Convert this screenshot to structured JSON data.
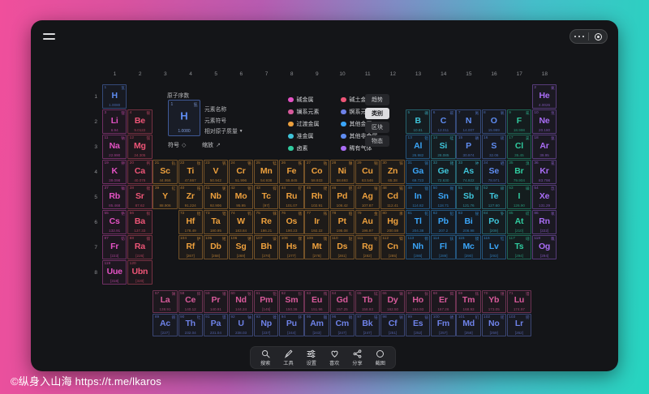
{
  "frame": {
    "copyright": "©纵身入山海 https://t.me/lkaros",
    "gradient_left": "#f04f9c",
    "gradient_right": "#26d5bf"
  },
  "window": {
    "bg": "#141518"
  },
  "capsule": {
    "more_name": "more-menu",
    "close_name": "close-target"
  },
  "table": {
    "group_labels": [
      "1",
      "2",
      "3",
      "4",
      "5",
      "6",
      "7",
      "8",
      "9",
      "10",
      "11",
      "12",
      "13",
      "14",
      "15",
      "16",
      "17",
      "18"
    ],
    "period_labels": [
      "1",
      "2",
      "3",
      "4",
      "5",
      "6",
      "7",
      "8"
    ]
  },
  "legend": {
    "sample": {
      "atomic_number_label": "原子序数",
      "name_label": "元素名称",
      "symbol_label": "元素符号",
      "mass_label": "相对原子质量",
      "mass_dropdown_icon": "▼",
      "number": "1",
      "name": "氢",
      "symbol": "H",
      "mass": "1.0080"
    },
    "toggles": [
      {
        "label": "符号",
        "icon": "◇"
      },
      {
        "label": "缩放",
        "icon": "↗"
      }
    ],
    "categories": [
      {
        "label": "碱金属",
        "cat": "alkali"
      },
      {
        "label": "碱土金属",
        "cat": "alkaline"
      },
      {
        "label": "镧系元素",
        "cat": "lanthanide"
      },
      {
        "label": "锕系元素",
        "cat": "actinide"
      },
      {
        "label": "过渡金属",
        "cat": "transition"
      },
      {
        "label": "其他金属",
        "cat": "postmetal"
      },
      {
        "label": "准金属",
        "cat": "metalloid"
      },
      {
        "label": "其他非金属",
        "cat": "nonmetal"
      },
      {
        "label": "卤素",
        "cat": "halogen"
      },
      {
        "label": "稀有气体",
        "cat": "noble"
      }
    ],
    "view_tabs": [
      {
        "label": "趋势",
        "active": false
      },
      {
        "label": "类别",
        "active": true
      },
      {
        "label": "区块",
        "active": false
      },
      {
        "label": "物态",
        "active": false
      }
    ]
  },
  "toolbar": {
    "items": [
      {
        "label": "搜索",
        "icon": "search"
      },
      {
        "label": "工具",
        "icon": "tools"
      },
      {
        "label": "设置",
        "icon": "settings"
      },
      {
        "label": "喜欢",
        "icon": "heart"
      },
      {
        "label": "分享",
        "icon": "share"
      },
      {
        "label": "截图",
        "icon": "screenshot"
      }
    ]
  },
  "category_colors": {
    "alkali": "#e452c4",
    "alkaline": "#ee5577",
    "lanthanide": "#d85a9b",
    "actinide": "#6e82e8",
    "transition": "#eda03d",
    "postmetal": "#3aa5f8",
    "metalloid": "#3fc4d9",
    "nonmetal": "#5f8df2",
    "halogen": "#30cb9f",
    "noble": "#a96df5"
  },
  "elements": [
    [
      1,
      "H",
      "氢",
      "1.0080",
      "nonmetal",
      1,
      1
    ],
    [
      2,
      "He",
      "氦",
      "4.0026",
      "noble",
      1,
      18
    ],
    [
      3,
      "Li",
      "锂",
      "6.94",
      "alkali",
      2,
      1
    ],
    [
      4,
      "Be",
      "铍",
      "9.0122",
      "alkaline",
      2,
      2
    ],
    [
      5,
      "B",
      "硼",
      "10.81",
      "metalloid",
      2,
      13
    ],
    [
      6,
      "C",
      "碳",
      "12.011",
      "nonmetal",
      2,
      14
    ],
    [
      7,
      "N",
      "氮",
      "14.007",
      "nonmetal",
      2,
      15
    ],
    [
      8,
      "O",
      "氧",
      "15.999",
      "nonmetal",
      2,
      16
    ],
    [
      9,
      "F",
      "氟",
      "18.998",
      "halogen",
      2,
      17
    ],
    [
      10,
      "Ne",
      "氖",
      "20.180",
      "noble",
      2,
      18
    ],
    [
      11,
      "Na",
      "钠",
      "22.990",
      "alkali",
      3,
      1
    ],
    [
      12,
      "Mg",
      "镁",
      "24.305",
      "alkaline",
      3,
      2
    ],
    [
      13,
      "Al",
      "铝",
      "26.982",
      "postmetal",
      3,
      13
    ],
    [
      14,
      "Si",
      "硅",
      "28.085",
      "metalloid",
      3,
      14
    ],
    [
      15,
      "P",
      "磷",
      "30.974",
      "nonmetal",
      3,
      15
    ],
    [
      16,
      "S",
      "硫",
      "32.06",
      "nonmetal",
      3,
      16
    ],
    [
      17,
      "Cl",
      "氯",
      "35.45",
      "halogen",
      3,
      17
    ],
    [
      18,
      "Ar",
      "氩",
      "39.95",
      "noble",
      3,
      18
    ],
    [
      19,
      "K",
      "钾",
      "39.098",
      "alkali",
      4,
      1
    ],
    [
      20,
      "Ca",
      "钙",
      "40.078",
      "alkaline",
      4,
      2
    ],
    [
      21,
      "Sc",
      "钪",
      "44.956",
      "transition",
      4,
      3
    ],
    [
      22,
      "Ti",
      "钛",
      "47.867",
      "transition",
      4,
      4
    ],
    [
      23,
      "V",
      "钒",
      "50.942",
      "transition",
      4,
      5
    ],
    [
      24,
      "Cr",
      "铬",
      "51.996",
      "transition",
      4,
      6
    ],
    [
      25,
      "Mn",
      "锰",
      "54.938",
      "transition",
      4,
      7
    ],
    [
      26,
      "Fe",
      "铁",
      "55.845",
      "transition",
      4,
      8
    ],
    [
      27,
      "Co",
      "钴",
      "58.933",
      "transition",
      4,
      9
    ],
    [
      28,
      "Ni",
      "镍",
      "58.693",
      "transition",
      4,
      10
    ],
    [
      29,
      "Cu",
      "铜",
      "63.546",
      "transition",
      4,
      11
    ],
    [
      30,
      "Zn",
      "锌",
      "65.38",
      "transition",
      4,
      12
    ],
    [
      31,
      "Ga",
      "镓",
      "69.723",
      "postmetal",
      4,
      13
    ],
    [
      32,
      "Ge",
      "锗",
      "72.630",
      "metalloid",
      4,
      14
    ],
    [
      33,
      "As",
      "砷",
      "74.922",
      "metalloid",
      4,
      15
    ],
    [
      34,
      "Se",
      "硒",
      "78.971",
      "nonmetal",
      4,
      16
    ],
    [
      35,
      "Br",
      "溴",
      "79.904",
      "halogen",
      4,
      17
    ],
    [
      36,
      "Kr",
      "氪",
      "83.798",
      "noble",
      4,
      18
    ],
    [
      37,
      "Rb",
      "铷",
      "85.468",
      "alkali",
      5,
      1
    ],
    [
      38,
      "Sr",
      "锶",
      "87.62",
      "alkaline",
      5,
      2
    ],
    [
      39,
      "Y",
      "钇",
      "88.906",
      "transition",
      5,
      3
    ],
    [
      40,
      "Zr",
      "锆",
      "91.224",
      "transition",
      5,
      4
    ],
    [
      41,
      "Nb",
      "铌",
      "92.906",
      "transition",
      5,
      5
    ],
    [
      42,
      "Mo",
      "钼",
      "95.95",
      "transition",
      5,
      6
    ],
    [
      43,
      "Tc",
      "锝",
      "[97]",
      "transition",
      5,
      7
    ],
    [
      44,
      "Ru",
      "钌",
      "101.07",
      "transition",
      5,
      8
    ],
    [
      45,
      "Rh",
      "铑",
      "102.91",
      "transition",
      5,
      9
    ],
    [
      46,
      "Pd",
      "钯",
      "106.42",
      "transition",
      5,
      10
    ],
    [
      47,
      "Ag",
      "银",
      "107.87",
      "transition",
      5,
      11
    ],
    [
      48,
      "Cd",
      "镉",
      "112.41",
      "transition",
      5,
      12
    ],
    [
      49,
      "In",
      "铟",
      "114.82",
      "postmetal",
      5,
      13
    ],
    [
      50,
      "Sn",
      "锡",
      "118.71",
      "postmetal",
      5,
      14
    ],
    [
      51,
      "Sb",
      "锑",
      "121.76",
      "metalloid",
      5,
      15
    ],
    [
      52,
      "Te",
      "碲",
      "127.60",
      "metalloid",
      5,
      16
    ],
    [
      53,
      "I",
      "碘",
      "126.90",
      "halogen",
      5,
      17
    ],
    [
      54,
      "Xe",
      "氙",
      "131.29",
      "noble",
      5,
      18
    ],
    [
      55,
      "Cs",
      "铯",
      "132.91",
      "alkali",
      6,
      1
    ],
    [
      56,
      "Ba",
      "钡",
      "137.33",
      "alkaline",
      6,
      2
    ],
    [
      72,
      "Hf",
      "铪",
      "178.49",
      "transition",
      6,
      4
    ],
    [
      73,
      "Ta",
      "钽",
      "180.95",
      "transition",
      6,
      5
    ],
    [
      74,
      "W",
      "钨",
      "183.84",
      "transition",
      6,
      6
    ],
    [
      75,
      "Re",
      "铼",
      "186.21",
      "transition",
      6,
      7
    ],
    [
      76,
      "Os",
      "锇",
      "190.23",
      "transition",
      6,
      8
    ],
    [
      77,
      "Ir",
      "铱",
      "192.22",
      "transition",
      6,
      9
    ],
    [
      78,
      "Pt",
      "铂",
      "195.08",
      "transition",
      6,
      10
    ],
    [
      79,
      "Au",
      "金",
      "196.97",
      "transition",
      6,
      11
    ],
    [
      80,
      "Hg",
      "汞",
      "200.59",
      "transition",
      6,
      12
    ],
    [
      81,
      "Tl",
      "铊",
      "204.38",
      "postmetal",
      6,
      13
    ],
    [
      82,
      "Pb",
      "铅",
      "207.2",
      "postmetal",
      6,
      14
    ],
    [
      83,
      "Bi",
      "铋",
      "208.98",
      "postmetal",
      6,
      15
    ],
    [
      84,
      "Po",
      "钋",
      "[209]",
      "metalloid",
      6,
      16
    ],
    [
      85,
      "At",
      "砹",
      "[210]",
      "halogen",
      6,
      17
    ],
    [
      86,
      "Rn",
      "氡",
      "[222]",
      "noble",
      6,
      18
    ],
    [
      87,
      "Fr",
      "钫",
      "[223]",
      "alkali",
      7,
      1
    ],
    [
      88,
      "Ra",
      "镭",
      "[226]",
      "alkaline",
      7,
      2
    ],
    [
      104,
      "Rf",
      "𬬻",
      "[267]",
      "transition",
      7,
      4
    ],
    [
      105,
      "Db",
      "𬭊",
      "[268]",
      "transition",
      7,
      5
    ],
    [
      106,
      "Sg",
      "𬭳",
      "[269]",
      "transition",
      7,
      6
    ],
    [
      107,
      "Bh",
      "𬭛",
      "[270]",
      "transition",
      7,
      7
    ],
    [
      108,
      "Hs",
      "𬭶",
      "[277]",
      "transition",
      7,
      8
    ],
    [
      109,
      "Mt",
      "鿏",
      "[278]",
      "transition",
      7,
      9
    ],
    [
      110,
      "Ds",
      "𫟼",
      "[281]",
      "transition",
      7,
      10
    ],
    [
      111,
      "Rg",
      "𬬭",
      "[282]",
      "transition",
      7,
      11
    ],
    [
      112,
      "Cn",
      "鿔",
      "[285]",
      "transition",
      7,
      12
    ],
    [
      113,
      "Nh",
      "鿭",
      "[286]",
      "postmetal",
      7,
      13
    ],
    [
      114,
      "Fl",
      "𫓧",
      "[289]",
      "postmetal",
      7,
      14
    ],
    [
      115,
      "Mc",
      "镆",
      "[290]",
      "postmetal",
      7,
      15
    ],
    [
      116,
      "Lv",
      "𫟷",
      "[293]",
      "postmetal",
      7,
      16
    ],
    [
      117,
      "Ts",
      "鿬",
      "[294]",
      "halogen",
      7,
      17
    ],
    [
      118,
      "Og",
      "鿫",
      "[294]",
      "noble",
      7,
      18
    ],
    [
      119,
      "Uue",
      "",
      "[318]",
      "alkali",
      8,
      1
    ],
    [
      120,
      "Ubn",
      "",
      "[320]",
      "alkaline",
      8,
      2
    ],
    [
      57,
      "La",
      "镧",
      "138.91",
      "lanthanide",
      "L",
      3
    ],
    [
      58,
      "Ce",
      "铈",
      "140.12",
      "lanthanide",
      "L",
      4
    ],
    [
      59,
      "Pr",
      "镨",
      "140.91",
      "lanthanide",
      "L",
      5
    ],
    [
      60,
      "Nd",
      "钕",
      "144.24",
      "lanthanide",
      "L",
      6
    ],
    [
      61,
      "Pm",
      "钷",
      "[145]",
      "lanthanide",
      "L",
      7
    ],
    [
      62,
      "Sm",
      "钐",
      "150.36",
      "lanthanide",
      "L",
      8
    ],
    [
      63,
      "Eu",
      "铕",
      "151.96",
      "lanthanide",
      "L",
      9
    ],
    [
      64,
      "Gd",
      "钆",
      "157.25",
      "lanthanide",
      "L",
      10
    ],
    [
      65,
      "Tb",
      "铽",
      "158.93",
      "lanthanide",
      "L",
      11
    ],
    [
      66,
      "Dy",
      "镝",
      "162.50",
      "lanthanide",
      "L",
      12
    ],
    [
      67,
      "Ho",
      "钬",
      "164.93",
      "lanthanide",
      "L",
      13
    ],
    [
      68,
      "Er",
      "铒",
      "167.26",
      "lanthanide",
      "L",
      14
    ],
    [
      69,
      "Tm",
      "铥",
      "168.93",
      "lanthanide",
      "L",
      15
    ],
    [
      70,
      "Yb",
      "镱",
      "173.05",
      "lanthanide",
      "L",
      16
    ],
    [
      71,
      "Lu",
      "镥",
      "174.97",
      "lanthanide",
      "L",
      17
    ],
    [
      89,
      "Ac",
      "锕",
      "[227]",
      "actinide",
      "A",
      3
    ],
    [
      90,
      "Th",
      "钍",
      "232.04",
      "actinide",
      "A",
      4
    ],
    [
      91,
      "Pa",
      "镤",
      "231.04",
      "actinide",
      "A",
      5
    ],
    [
      92,
      "U",
      "铀",
      "238.03",
      "actinide",
      "A",
      6
    ],
    [
      93,
      "Np",
      "镎",
      "[237]",
      "actinide",
      "A",
      7
    ],
    [
      94,
      "Pu",
      "钚",
      "[244]",
      "actinide",
      "A",
      8
    ],
    [
      95,
      "Am",
      "镅",
      "[243]",
      "actinide",
      "A",
      9
    ],
    [
      96,
      "Cm",
      "锔",
      "[247]",
      "actinide",
      "A",
      10
    ],
    [
      97,
      "Bk",
      "锫",
      "[247]",
      "actinide",
      "A",
      11
    ],
    [
      98,
      "Cf",
      "锎",
      "[251]",
      "actinide",
      "A",
      12
    ],
    [
      99,
      "Es",
      "锿",
      "[252]",
      "actinide",
      "A",
      13
    ],
    [
      100,
      "Fm",
      "镄",
      "[257]",
      "actinide",
      "A",
      14
    ],
    [
      101,
      "Md",
      "钔",
      "[258]",
      "actinide",
      "A",
      15
    ],
    [
      102,
      "No",
      "锘",
      "[259]",
      "actinide",
      "A",
      16
    ],
    [
      103,
      "Lr",
      "铹",
      "[262]",
      "actinide",
      "A",
      17
    ]
  ]
}
